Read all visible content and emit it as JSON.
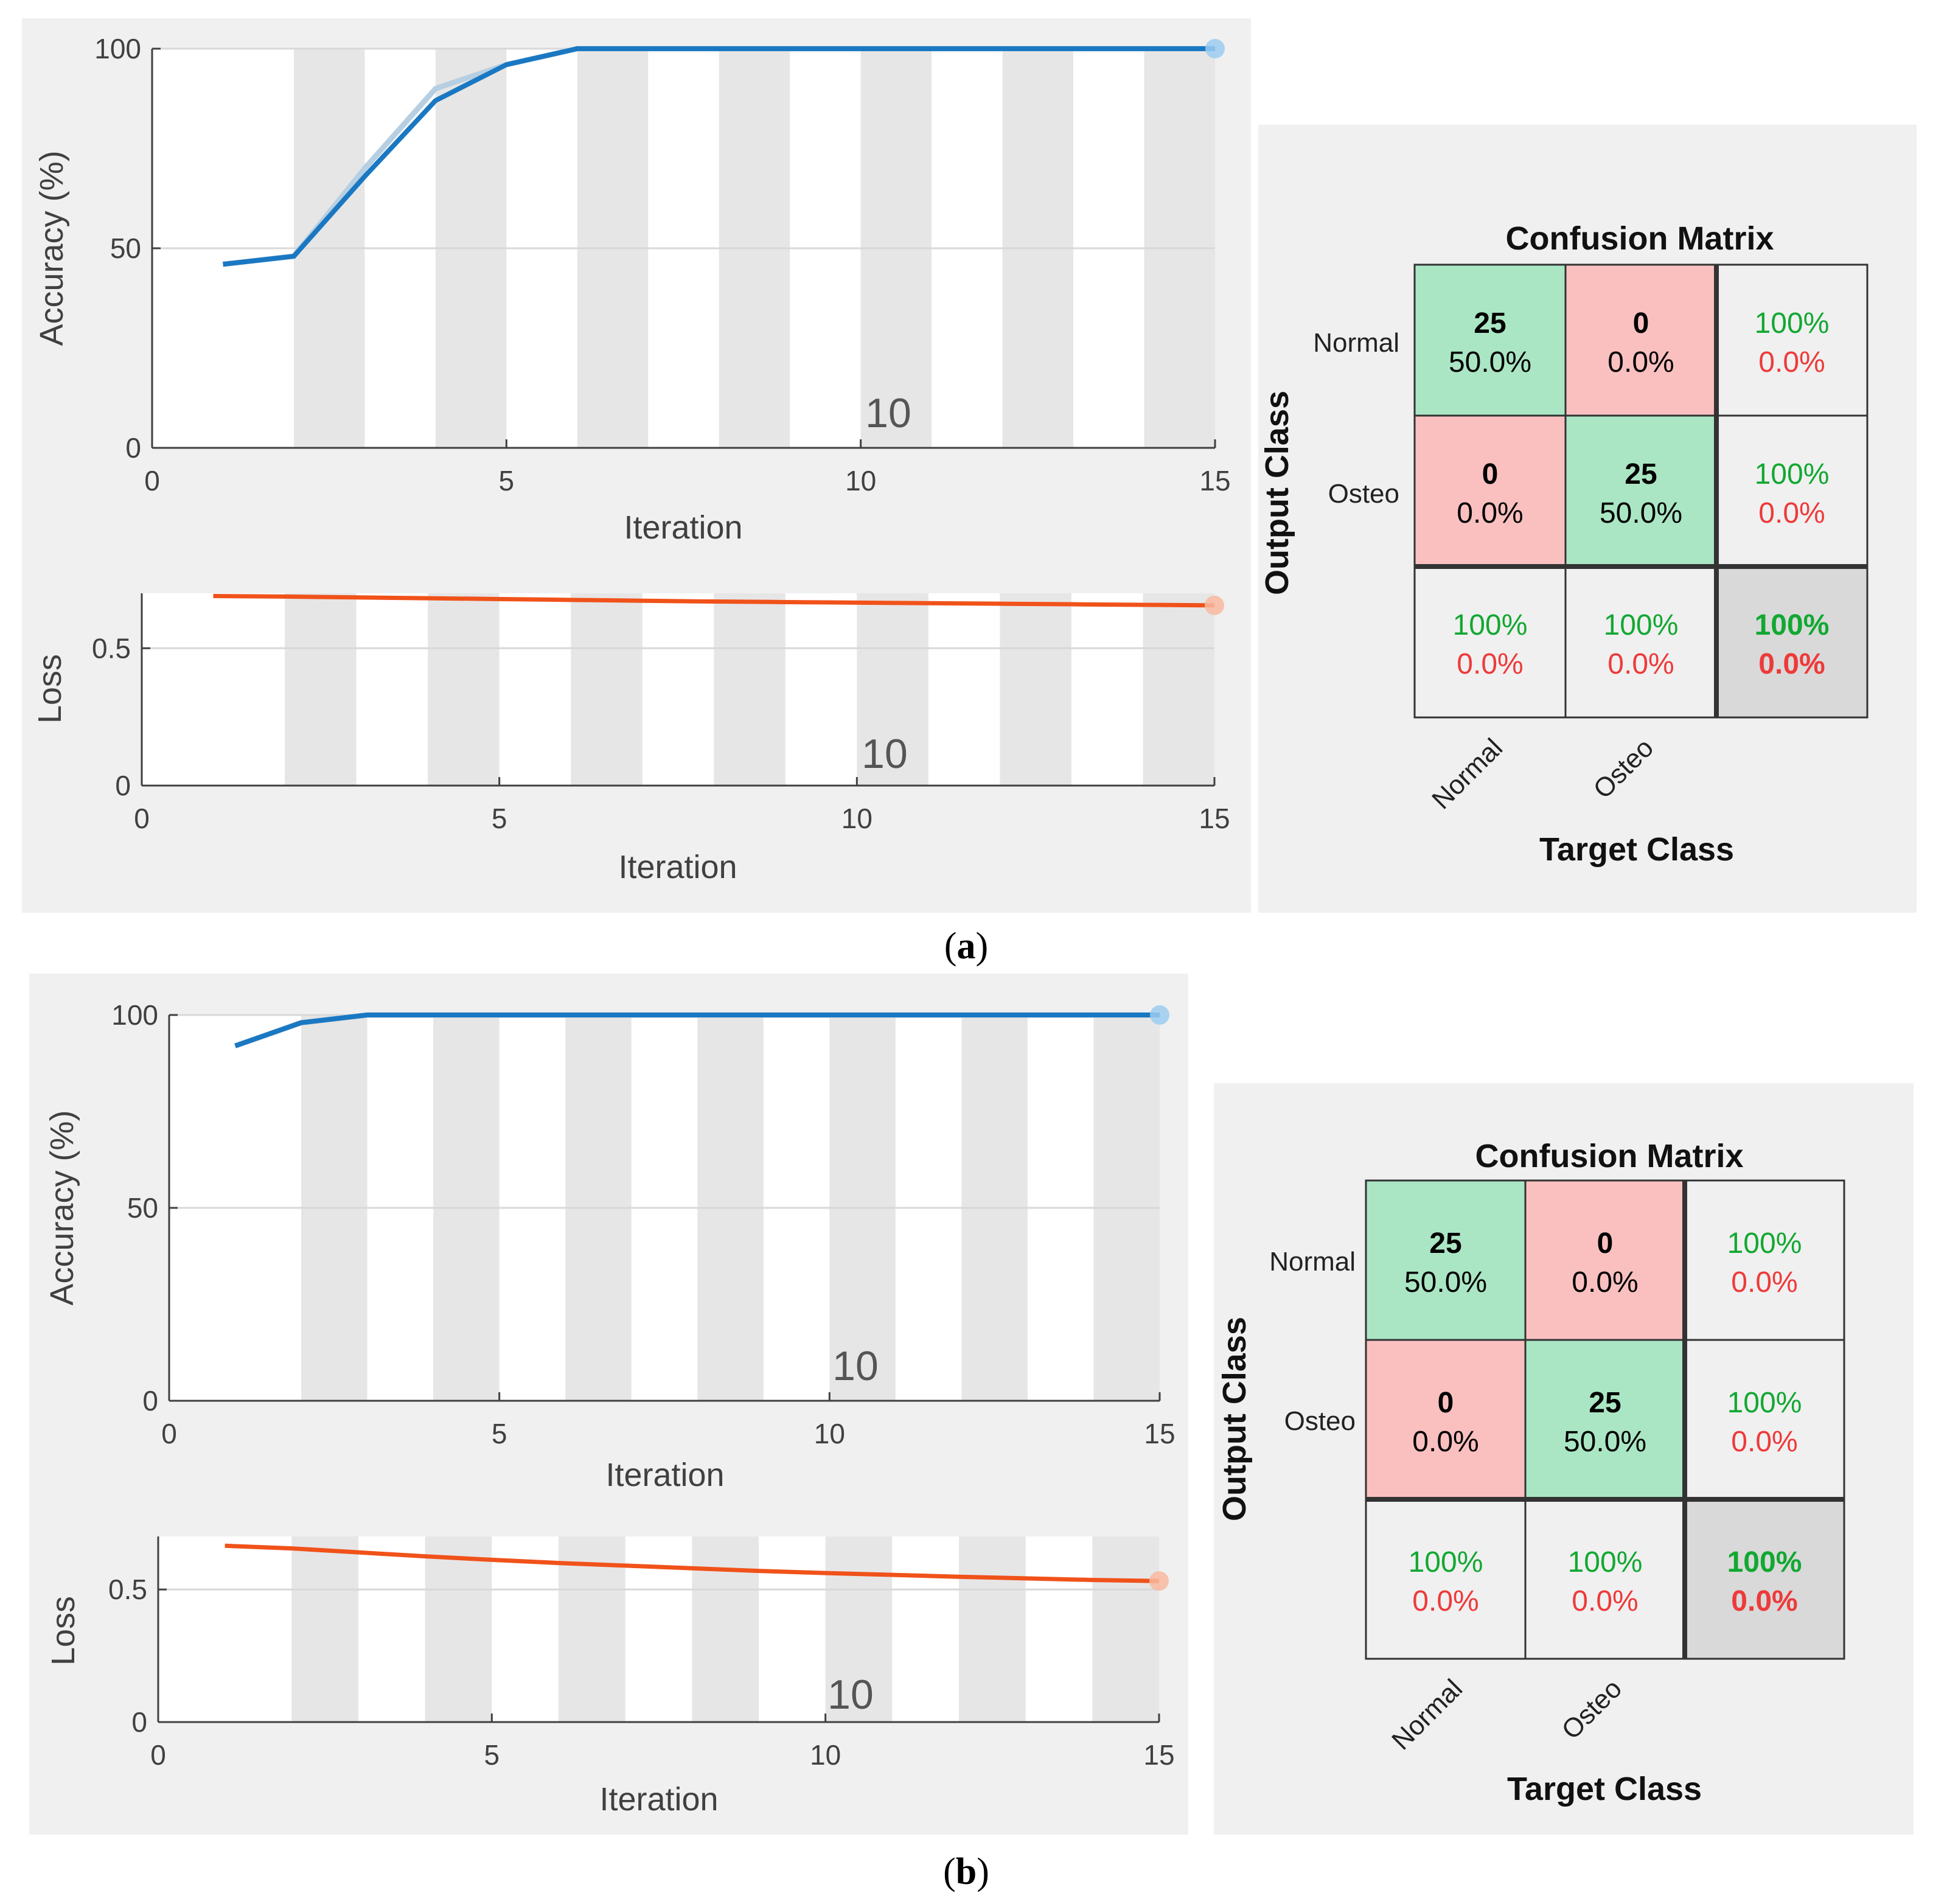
{
  "panels": [
    {
      "label_open": "(",
      "label_letter": "a",
      "label_close": ")",
      "accuracy": {
        "ylabel": "Accuracy (%)",
        "xlabel": "Iteration",
        "xlim": [
          0,
          15
        ],
        "ylim": [
          0,
          100
        ],
        "xticks": [
          "0",
          "5",
          "10",
          "15"
        ],
        "yticks": [
          "0",
          "50",
          "100"
        ],
        "epoch_marker": "10",
        "x": [
          1,
          2,
          3,
          4,
          5,
          6,
          7,
          8,
          9,
          10,
          11,
          12,
          13,
          14,
          15
        ],
        "smoothed": [
          46,
          48,
          68,
          87,
          96,
          100,
          100,
          100,
          100,
          100,
          100,
          100,
          100,
          100,
          100
        ],
        "raw": [
          46,
          48,
          70,
          90,
          96,
          100,
          100,
          100,
          100,
          100,
          100,
          100,
          100,
          100,
          100
        ]
      },
      "loss": {
        "ylabel": "Loss",
        "xlabel": "Iteration",
        "xlim": [
          0,
          15
        ],
        "ylim": [
          0,
          0.7
        ],
        "xticks": [
          "0",
          "5",
          "10",
          "15"
        ],
        "yticks": [
          "0",
          "0.5"
        ],
        "epoch_marker": "10",
        "x": [
          1,
          2,
          3,
          4,
          5,
          6,
          7,
          8,
          9,
          10,
          11,
          12,
          13,
          14,
          15
        ],
        "values": [
          0.69,
          0.688,
          0.685,
          0.682,
          0.679,
          0.676,
          0.673,
          0.67,
          0.668,
          0.666,
          0.664,
          0.662,
          0.66,
          0.658,
          0.656
        ]
      },
      "confusion": {
        "title": "Confusion Matrix",
        "ylabel": "Output Class",
        "xlabel": "Target Class",
        "classes": [
          "Normal",
          "Osteo"
        ],
        "counts": [
          [
            "25",
            "0"
          ],
          [
            "0",
            "25"
          ]
        ],
        "percents": [
          [
            "50.0%",
            "0.0%"
          ],
          [
            "0.0%",
            "50.0%"
          ]
        ],
        "row_summary": [
          [
            "100%",
            "0.0%"
          ],
          [
            "100%",
            "0.0%"
          ]
        ],
        "col_summary": [
          [
            "100%",
            "0.0%"
          ],
          [
            "100%",
            "0.0%"
          ]
        ],
        "overall": [
          "100%",
          "0.0%"
        ]
      }
    },
    {
      "label_open": "(",
      "label_letter": "b",
      "label_close": ")",
      "accuracy": {
        "ylabel": "Accuracy (%)",
        "xlabel": "Iteration",
        "xlim": [
          0,
          15
        ],
        "ylim": [
          0,
          100
        ],
        "xticks": [
          "0",
          "5",
          "10",
          "15"
        ],
        "yticks": [
          "0",
          "50",
          "100"
        ],
        "epoch_marker": "10",
        "x": [
          1,
          2,
          3,
          4,
          5,
          6,
          7,
          8,
          9,
          10,
          11,
          12,
          13,
          14,
          15
        ],
        "smoothed": [
          92,
          98,
          100,
          100,
          100,
          100,
          100,
          100,
          100,
          100,
          100,
          100,
          100,
          100,
          100
        ],
        "raw": [
          92,
          98,
          100,
          100,
          100,
          100,
          100,
          100,
          100,
          100,
          100,
          100,
          100,
          100,
          100
        ]
      },
      "loss": {
        "ylabel": "Loss",
        "xlabel": "Iteration",
        "xlim": [
          0,
          15
        ],
        "ylim": [
          0,
          0.7
        ],
        "xticks": [
          "0",
          "5",
          "10",
          "15"
        ],
        "yticks": [
          "0",
          "0.5"
        ],
        "epoch_marker": "10",
        "x": [
          1,
          2,
          3,
          4,
          5,
          6,
          7,
          8,
          9,
          10,
          11,
          12,
          13,
          14,
          15
        ],
        "values": [
          0.665,
          0.655,
          0.64,
          0.625,
          0.612,
          0.6,
          0.59,
          0.58,
          0.57,
          0.562,
          0.555,
          0.548,
          0.542,
          0.536,
          0.532
        ]
      },
      "confusion": {
        "title": "Confusion Matrix",
        "ylabel": "Output Class",
        "xlabel": "Target Class",
        "classes": [
          "Normal",
          "Osteo"
        ],
        "counts": [
          [
            "25",
            "0"
          ],
          [
            "0",
            "25"
          ]
        ],
        "percents": [
          [
            "50.0%",
            "0.0%"
          ],
          [
            "0.0%",
            "50.0%"
          ]
        ],
        "row_summary": [
          [
            "100%",
            "0.0%"
          ],
          [
            "100%",
            "0.0%"
          ]
        ],
        "col_summary": [
          [
            "100%",
            "0.0%"
          ],
          [
            "100%",
            "0.0%"
          ]
        ],
        "overall": [
          "100%",
          "0.0%"
        ]
      }
    }
  ],
  "colors": {
    "accuracy_line": "#1a78c2",
    "accuracy_raw": "#b7cfe2",
    "loss_line": "#f0521a",
    "stripe": "#e6e6e6",
    "panel_bg": "#f0f0f0",
    "cm_green": "#abe6c4",
    "cm_red": "#fac0c0",
    "cm_summary": "#f0f0f0",
    "cm_overall": "#d9d9d9"
  }
}
